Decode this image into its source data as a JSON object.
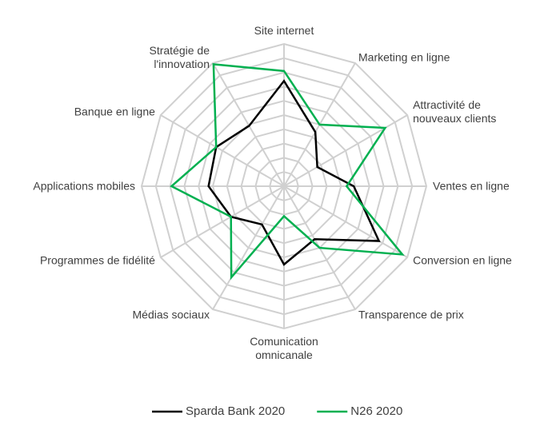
{
  "chart_data": {
    "type": "radar",
    "categories": [
      "Site internet",
      "Marketing en ligne",
      "Attractivité de\nnouveaux clients",
      "Ventes en ligne",
      "Conversion en ligne",
      "Transparence de prix",
      "Comunication\nomnicanale",
      "Médias sociaux",
      "Programmes de fidélité",
      "Applications mobiles",
      "Banque en ligne",
      "Stratégie de\nl'innovation"
    ],
    "rlim": [
      0,
      10
    ],
    "rticks": [
      1,
      2,
      3,
      4,
      5,
      6,
      7,
      8,
      9,
      10
    ],
    "grid": true,
    "legend": "bottom",
    "series": [
      {
        "name": "Sparda Bank 2020",
        "color": "#000000",
        "values": [
          7.4,
          4.4,
          2.7,
          4.9,
          7.7,
          4.3,
          5.5,
          3.1,
          4.3,
          5.3,
          5.5,
          4.9
        ]
      },
      {
        "name": "N26 2020",
        "color": "#00b050",
        "values": [
          8.1,
          5.0,
          8.2,
          4.4,
          9.6,
          5.0,
          2.1,
          7.4,
          4.3,
          7.9,
          5.5,
          9.9
        ]
      }
    ]
  }
}
